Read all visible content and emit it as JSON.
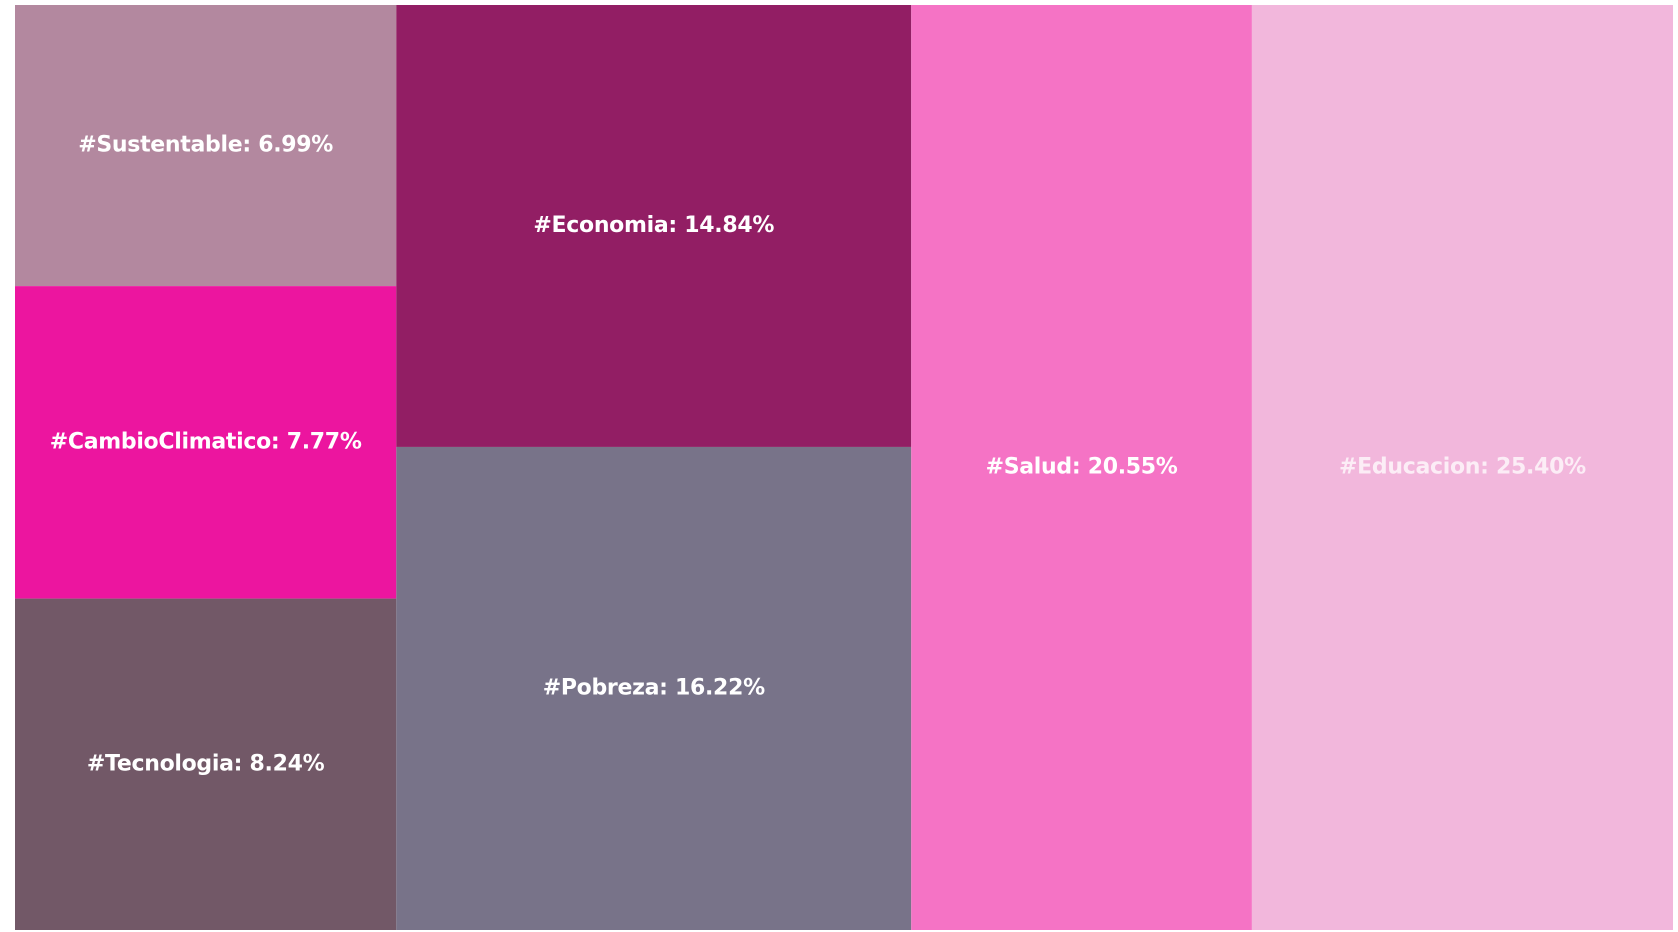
{
  "chart_data": {
    "type": "treemap",
    "labels": [
      "#Sustentable: 6.99%",
      "#CambioClimatico: 7.77%",
      "#Tecnologia: 8.24%",
      "#Economia: 14.84%",
      "#Pobreza: 16.22%",
      "#Salud: 20.55%",
      "#Educacion: 25.40%"
    ],
    "values": [
      6.99,
      7.77,
      8.24,
      14.84,
      16.22,
      20.55,
      25.4
    ],
    "colors": [
      "#b3889f",
      "#ec159f",
      "#725867",
      "#921e64",
      "#787389",
      "#f573c5",
      "#f2b7dc"
    ]
  }
}
